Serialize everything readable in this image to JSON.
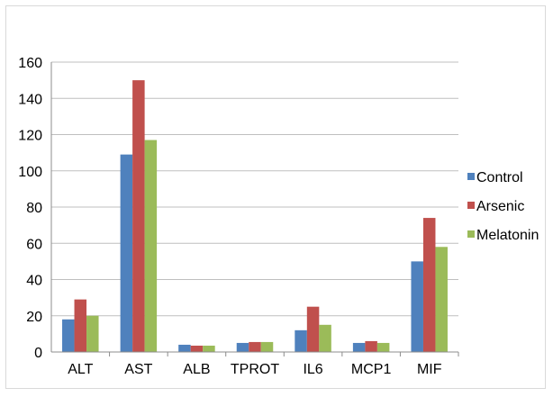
{
  "chart_data": {
    "type": "bar",
    "categories": [
      "ALT",
      "AST",
      "ALB",
      "TPROT",
      "IL6",
      "MCP1",
      "MIF"
    ],
    "series": [
      {
        "name": "Control",
        "color": "#4f81bd",
        "values": [
          18,
          109,
          4,
          5,
          12,
          5,
          50
        ]
      },
      {
        "name": "Arsenic",
        "color": "#c0504d",
        "values": [
          29,
          150,
          3.5,
          5.5,
          25,
          6,
          74
        ]
      },
      {
        "name": "Melatonin",
        "color": "#9bbb59",
        "values": [
          20,
          117,
          3.5,
          5.5,
          15,
          5,
          58
        ]
      }
    ],
    "ylim": [
      0,
      160
    ],
    "yticks": [
      0,
      20,
      40,
      60,
      80,
      100,
      120,
      140,
      160
    ],
    "grid": true,
    "legend": "right"
  }
}
